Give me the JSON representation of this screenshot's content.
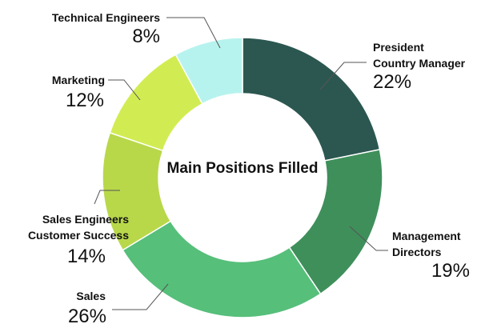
{
  "chart_data": {
    "type": "pie",
    "donut": true,
    "title": "Main Positions Filled",
    "slices": [
      {
        "label": "President Country Manager",
        "label_lines": [
          "President",
          "Country Manager"
        ],
        "value": 22,
        "pct_text": "22%",
        "color": "#2b5750"
      },
      {
        "label": "Management Directors",
        "label_lines": [
          "Management",
          "Directors"
        ],
        "value": 19,
        "pct_text": "19%",
        "color": "#3f8f5b"
      },
      {
        "label": "Sales",
        "label_lines": [
          "Sales"
        ],
        "value": 26,
        "pct_text": "26%",
        "color": "#56bf7a"
      },
      {
        "label": "Sales Engineers Customer Success",
        "label_lines": [
          "Sales Engineers",
          "Customer Success"
        ],
        "value": 14,
        "pct_text": "14%",
        "color": "#b8d84a"
      },
      {
        "label": "Marketing",
        "label_lines": [
          "Marketing"
        ],
        "value": 12,
        "pct_text": "12%",
        "color": "#d1ec52"
      },
      {
        "label": "Technical Engineers",
        "label_lines": [
          "Technical Engineers"
        ],
        "value": 8,
        "pct_text": "8%",
        "color": "#b7f3ee"
      }
    ]
  }
}
